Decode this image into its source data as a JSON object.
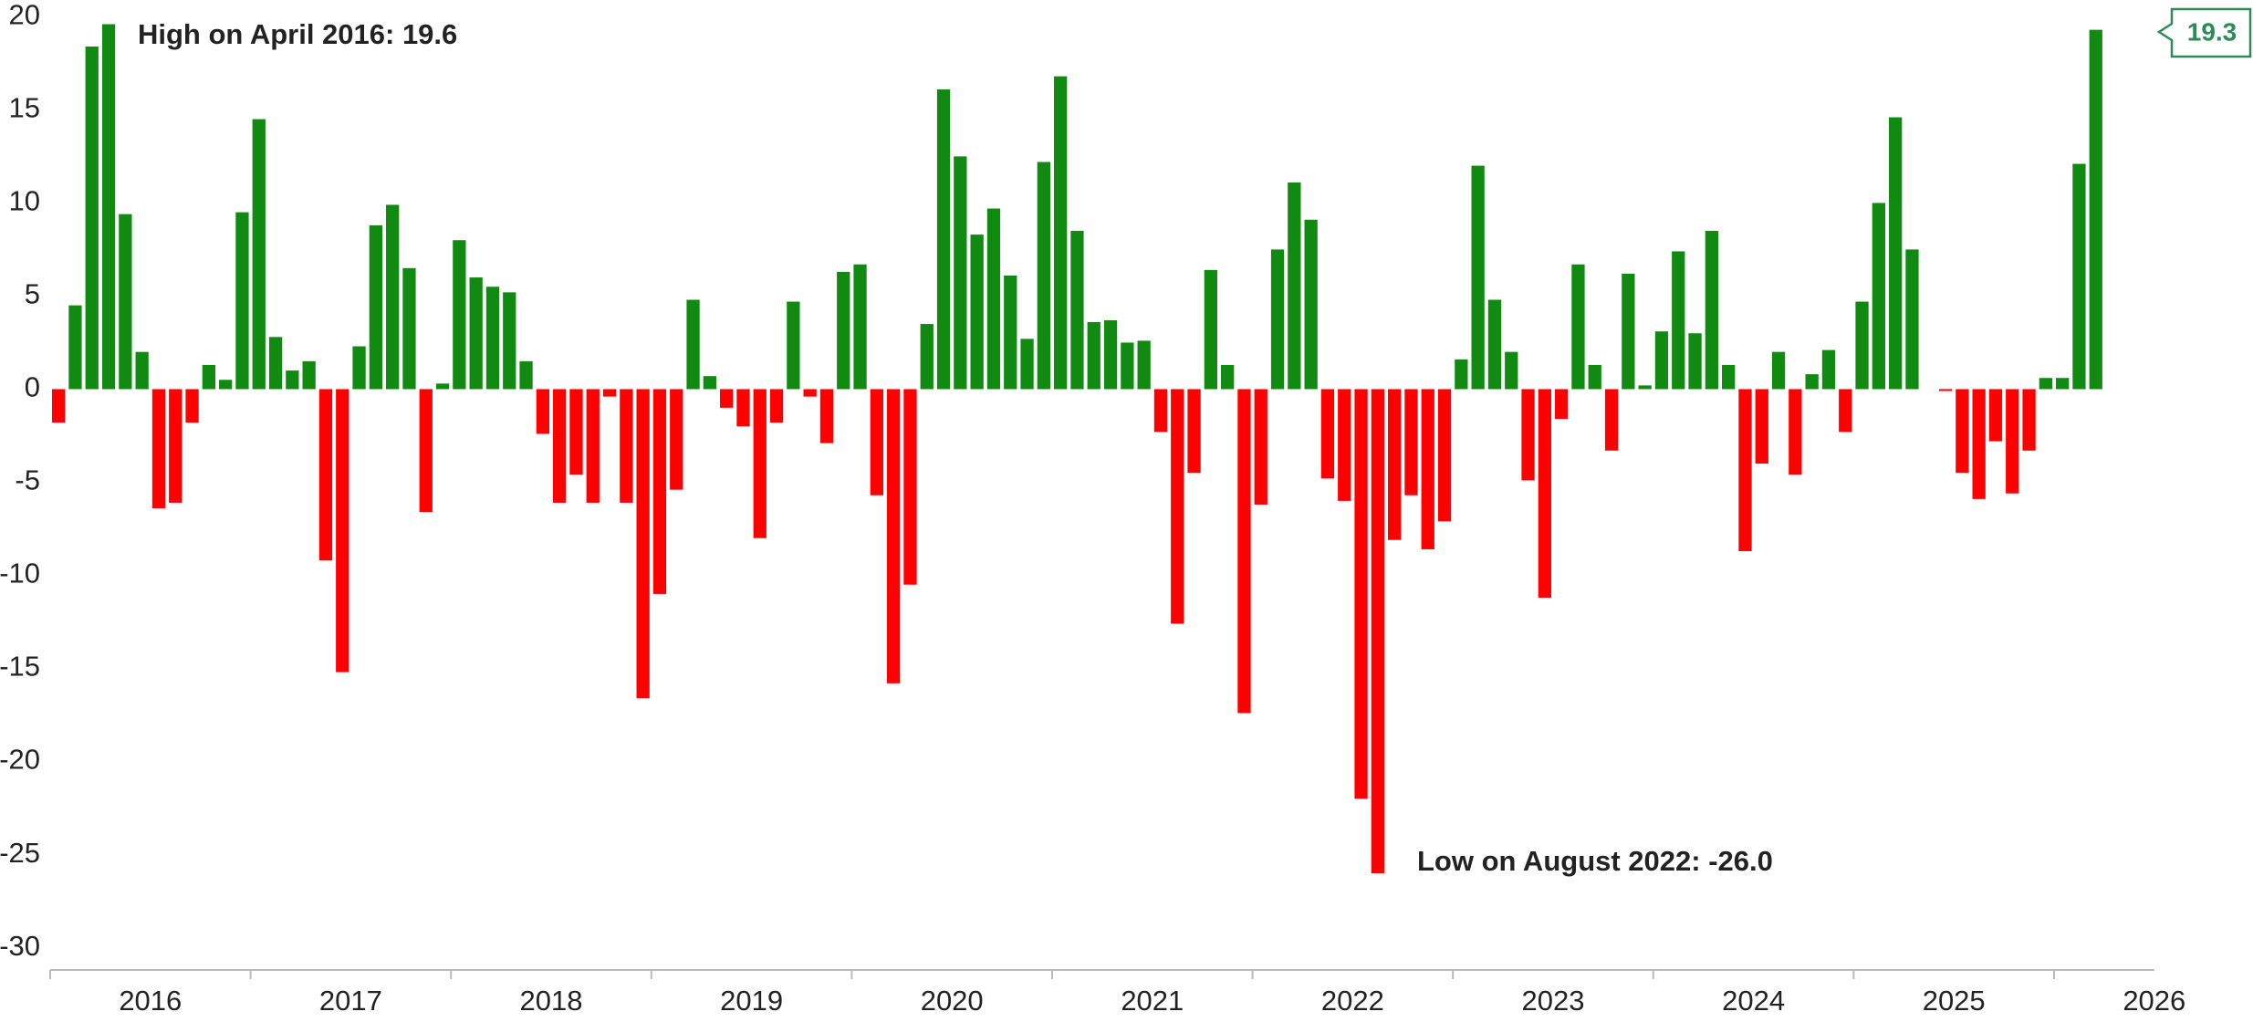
{
  "chart_data": {
    "type": "bar",
    "year_labels": [
      "2016",
      "2017",
      "2018",
      "2019",
      "2020",
      "2021",
      "2022",
      "2023",
      "2024",
      "2025",
      "2026"
    ],
    "values": [
      -1.8,
      4.5,
      18.4,
      19.6,
      9.4,
      2.0,
      -6.4,
      -6.1,
      -1.8,
      1.3,
      0.5,
      9.5,
      14.5,
      2.8,
      1.0,
      1.5,
      -9.2,
      -15.2,
      2.3,
      8.8,
      9.9,
      6.5,
      -6.6,
      0.3,
      8.0,
      6.0,
      5.5,
      5.2,
      1.5,
      -2.4,
      -6.1,
      -4.6,
      -6.1,
      -0.4,
      -6.1,
      -16.6,
      -11.0,
      -5.4,
      4.8,
      0.7,
      -1.0,
      -2.0,
      -8.0,
      -1.8,
      4.7,
      -0.4,
      -2.9,
      6.3,
      6.7,
      -5.7,
      -15.8,
      -10.5,
      3.5,
      16.1,
      12.5,
      8.3,
      9.7,
      6.1,
      2.7,
      12.2,
      16.8,
      8.5,
      3.6,
      3.7,
      2.5,
      2.6,
      -2.3,
      -12.6,
      -4.5,
      6.4,
      1.3,
      -17.4,
      -6.2,
      7.5,
      11.1,
      9.1,
      -4.8,
      -6.0,
      -22.0,
      -26.0,
      -8.1,
      -5.7,
      -8.6,
      -7.1,
      1.6,
      12.0,
      4.8,
      2.0,
      -4.9,
      -11.2,
      -1.6,
      6.7,
      1.3,
      -3.3,
      6.2,
      0.2,
      3.1,
      7.4,
      3.0,
      8.5,
      1.3,
      -8.7,
      -4.0,
      2.0,
      -4.6,
      0.8,
      2.1,
      -2.3,
      4.7,
      10.0,
      14.6,
      7.5,
      0,
      -0.1,
      -4.5,
      -5.9,
      -2.8,
      -5.6,
      -3.3,
      0.6,
      0.6,
      12.1,
      19.3
    ],
    "positive_color": "#118a11",
    "negative_color": "#ff0000",
    "ylim": [
      -31,
      20.9
    ],
    "yticks": [
      20,
      15,
      10,
      5,
      0,
      -5,
      -10,
      -15,
      -20,
      -25,
      -30
    ],
    "annotations": [
      "High on April 2016: 19.6",
      "Low on August 2022: -26.0"
    ]
  }
}
